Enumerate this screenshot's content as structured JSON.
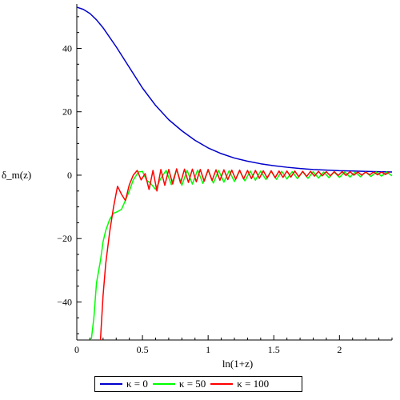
{
  "chart_data": {
    "type": "line",
    "title": "",
    "xlabel": "ln(1+z)",
    "ylabel": "δ_m(z)",
    "xlim": [
      0,
      2.4
    ],
    "ylim": [
      -52,
      54
    ],
    "grid": false,
    "legend_position": "bottom",
    "x_ticks": [
      {
        "value": 0,
        "label": "0"
      },
      {
        "value": 0.5,
        "label": "0.5"
      },
      {
        "value": 1,
        "label": "1"
      },
      {
        "value": 1.5,
        "label": "1.5"
      },
      {
        "value": 2,
        "label": "2"
      }
    ],
    "y_ticks": [
      {
        "value": 40,
        "label": "40"
      },
      {
        "value": 20,
        "label": "20"
      },
      {
        "value": 0,
        "label": "0"
      },
      {
        "value": -20,
        "label": "−20"
      },
      {
        "value": -40,
        "label": "−40"
      }
    ],
    "series": [
      {
        "name": "κ = 0",
        "color": "#0000cc",
        "x": [
          0,
          0.05,
          0.1,
          0.15,
          0.2,
          0.3,
          0.4,
          0.5,
          0.6,
          0.7,
          0.8,
          0.9,
          1.0,
          1.1,
          1.2,
          1.3,
          1.4,
          1.5,
          1.6,
          1.7,
          1.8,
          1.9,
          2.0,
          2.1,
          2.2,
          2.3,
          2.4
        ],
        "y": [
          53,
          52.3,
          51,
          49,
          46.5,
          40.5,
          34,
          27.5,
          22,
          17.5,
          14,
          11,
          8.6,
          6.8,
          5.4,
          4.4,
          3.6,
          3.0,
          2.5,
          2.1,
          1.8,
          1.6,
          1.4,
          1.3,
          1.2,
          1.1,
          1.0
        ]
      },
      {
        "name": "κ = 50",
        "color": "#00ff00",
        "x": [
          0.11,
          0.13,
          0.15,
          0.18,
          0.2,
          0.22,
          0.25,
          0.28,
          0.31,
          0.34,
          0.37,
          0.4,
          0.43,
          0.47,
          0.5,
          0.53,
          0.56,
          0.6,
          0.64,
          0.68,
          0.72,
          0.76,
          0.8,
          0.84,
          0.88,
          0.92,
          0.96,
          1.0,
          1.04,
          1.08,
          1.12,
          1.16,
          1.2,
          1.24,
          1.28,
          1.32,
          1.36,
          1.4,
          1.44,
          1.48,
          1.52,
          1.56,
          1.6,
          1.64,
          1.68,
          1.72,
          1.76,
          1.8,
          1.84,
          1.88,
          1.92,
          1.96,
          2.0,
          2.04,
          2.08,
          2.12,
          2.16,
          2.2,
          2.24,
          2.28,
          2.32,
          2.36,
          2.4
        ],
        "y": [
          -52,
          -45,
          -34,
          -27,
          -21,
          -17.5,
          -14,
          -12,
          -11.5,
          -10.8,
          -8,
          -5,
          -1.5,
          1,
          1.2,
          -1.5,
          -2.5,
          -4.5,
          -1,
          1.5,
          -3,
          1.8,
          -3.2,
          1.5,
          -2.8,
          1.6,
          -2.6,
          1.5,
          -2.5,
          1.5,
          -2.2,
          1.4,
          -2.0,
          1.4,
          -1.8,
          1.3,
          -1.6,
          1.3,
          -1.4,
          1.2,
          -1.3,
          1.2,
          -1.2,
          1.1,
          -1.1,
          1.1,
          -1.0,
          1.1,
          -0.9,
          1.0,
          -0.8,
          1.0,
          -0.7,
          1.0,
          -0.6,
          1.0,
          -0.5,
          1.0,
          -0.4,
          1.0,
          -0.3,
          1.0,
          -0.2
        ]
      },
      {
        "name": "κ = 100",
        "color": "#ff0000",
        "x": [
          0.18,
          0.2,
          0.22,
          0.25,
          0.28,
          0.31,
          0.34,
          0.37,
          0.4,
          0.43,
          0.46,
          0.49,
          0.52,
          0.55,
          0.58,
          0.61,
          0.64,
          0.67,
          0.7,
          0.73,
          0.76,
          0.79,
          0.82,
          0.85,
          0.88,
          0.91,
          0.94,
          0.97,
          1.0,
          1.03,
          1.06,
          1.09,
          1.12,
          1.15,
          1.18,
          1.21,
          1.24,
          1.27,
          1.3,
          1.33,
          1.36,
          1.39,
          1.42,
          1.45,
          1.48,
          1.51,
          1.54,
          1.57,
          1.6,
          1.63,
          1.66,
          1.69,
          1.72,
          1.75,
          1.78,
          1.81,
          1.84,
          1.87,
          1.9,
          1.93,
          1.96,
          1.99,
          2.02,
          2.05,
          2.08,
          2.11,
          2.14,
          2.17,
          2.2,
          2.23,
          2.26,
          2.29,
          2.32,
          2.35,
          2.38
        ],
        "y": [
          -52,
          -38,
          -28,
          -18,
          -10,
          -3.5,
          -6,
          -8,
          -3,
          0,
          1.5,
          -1.5,
          0.5,
          -4.5,
          1.5,
          -5,
          1.8,
          -3.2,
          1.8,
          -2.8,
          2.0,
          -2.5,
          1.9,
          -2.3,
          1.9,
          -2.1,
          1.8,
          -1.9,
          1.8,
          -1.7,
          1.7,
          -1.6,
          1.7,
          -1.4,
          1.6,
          -1.3,
          1.6,
          -1.2,
          1.5,
          -1.1,
          1.5,
          -1.0,
          1.4,
          -0.9,
          1.4,
          -0.8,
          1.3,
          -0.7,
          1.3,
          -0.6,
          1.3,
          -0.5,
          1.2,
          -0.4,
          1.2,
          -0.3,
          1.2,
          -0.2,
          1.1,
          -0.2,
          1.1,
          -0.1,
          1.1,
          -0.1,
          1.1,
          0.0,
          1.0,
          0.0,
          1.0,
          0.1,
          1.0,
          0.1,
          1.0,
          0.2,
          1.0
        ]
      }
    ]
  }
}
